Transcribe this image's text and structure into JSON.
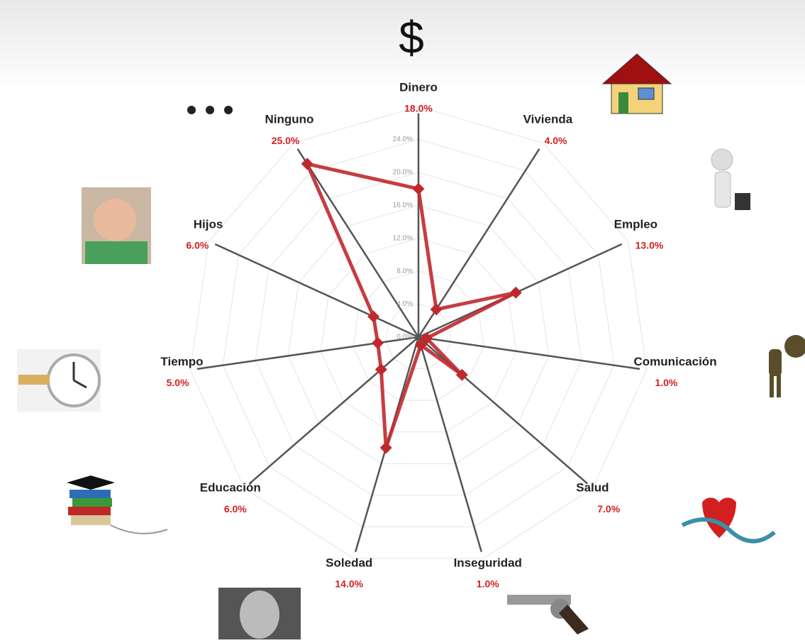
{
  "chart_data": {
    "type": "radar",
    "annotations": [
      "$"
    ],
    "categories": [
      "Dinero",
      "Vivienda",
      "Empleo",
      "Comunicación",
      "Salud",
      "Inseguridad",
      "Soledad",
      "Educación",
      "Tiempo",
      "Hijos",
      "Ninguno"
    ],
    "values": [
      18,
      4,
      13,
      1,
      7,
      1,
      14,
      6,
      5,
      6,
      25
    ],
    "value_labels": [
      "18.0%",
      "4.0%",
      "13.0%",
      "1.0%",
      "7.0%",
      "1.0%",
      "14.0%",
      "6.0%",
      "5.0%",
      "6.0%",
      "25.0%"
    ],
    "color": "#c0282d",
    "rlim": [
      0,
      28
    ],
    "rticks": [
      {
        "value": 0,
        "label": "0.0%"
      },
      {
        "value": 4,
        "label": "4.0%"
      },
      {
        "value": 8,
        "label": "8.0%"
      },
      {
        "value": 12,
        "label": "12.0%"
      },
      {
        "value": 16,
        "label": "16.0%"
      },
      {
        "value": 20,
        "label": "20.0%"
      },
      {
        "value": 24,
        "label": "24.0%"
      }
    ],
    "grid": true
  }
}
